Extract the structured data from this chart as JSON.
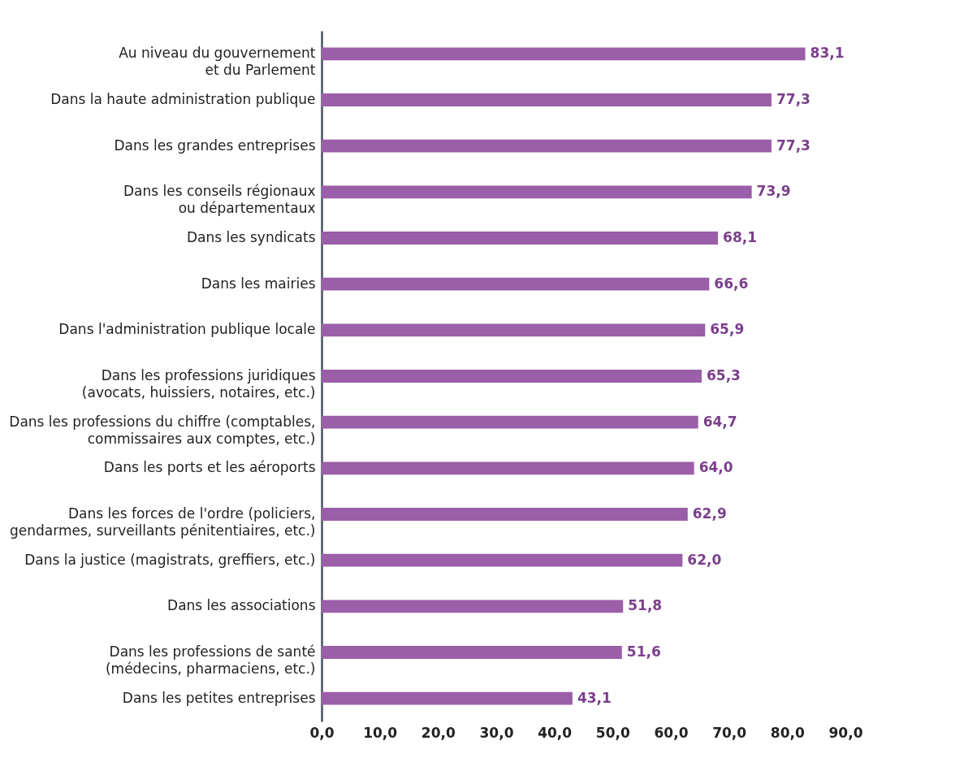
{
  "chart_data": {
    "type": "bar",
    "orientation": "horizontal",
    "categories": [
      "Au niveau du gouvernement\net du Parlement",
      "Dans la haute administration publique",
      "Dans les grandes entreprises",
      "Dans les conseils régionaux\nou départementaux",
      "Dans les syndicats",
      "Dans les mairies",
      "Dans l'administration publique locale",
      "Dans les professions juridiques\n(avocats, huissiers, notaires, etc.)",
      "Dans les professions du chiffre (comptables,\ncommissaires aux comptes, etc.)",
      "Dans les ports et les aéroports",
      "Dans les forces de l'ordre (policiers,\ngendarmes, surveillants pénitentiaires, etc.)",
      "Dans la justice (magistrats, greffiers, etc.)",
      "Dans les associations",
      "Dans les professions de santé\n(médecins, pharmaciens, etc.)",
      "Dans les petites entreprises"
    ],
    "values": [
      83.1,
      77.3,
      77.3,
      73.9,
      68.1,
      66.6,
      65.9,
      65.3,
      64.7,
      64.0,
      62.9,
      62.0,
      51.8,
      51.6,
      43.1
    ],
    "value_labels": [
      "83,1",
      "77,3",
      "77,3",
      "73,9",
      "68,1",
      "66,6",
      "65,9",
      "65,3",
      "64,7",
      "64,0",
      "62,9",
      "62,0",
      "51,8",
      "51,6",
      "43,1"
    ],
    "color": "#9b5ea8",
    "xlim": [
      0,
      90
    ],
    "xticks": [
      {
        "value": 0,
        "label": "0,0"
      },
      {
        "value": 10,
        "label": "10,0"
      },
      {
        "value": 20,
        "label": "20,0"
      },
      {
        "value": 30,
        "label": "30,0"
      },
      {
        "value": 40,
        "label": "40,0"
      },
      {
        "value": 50,
        "label": "50,0"
      },
      {
        "value": 60,
        "label": "60,0"
      },
      {
        "value": 70,
        "label": "70,0"
      },
      {
        "value": 80,
        "label": "80,0"
      },
      {
        "value": 90,
        "label": "90,0"
      }
    ],
    "grid": false
  }
}
